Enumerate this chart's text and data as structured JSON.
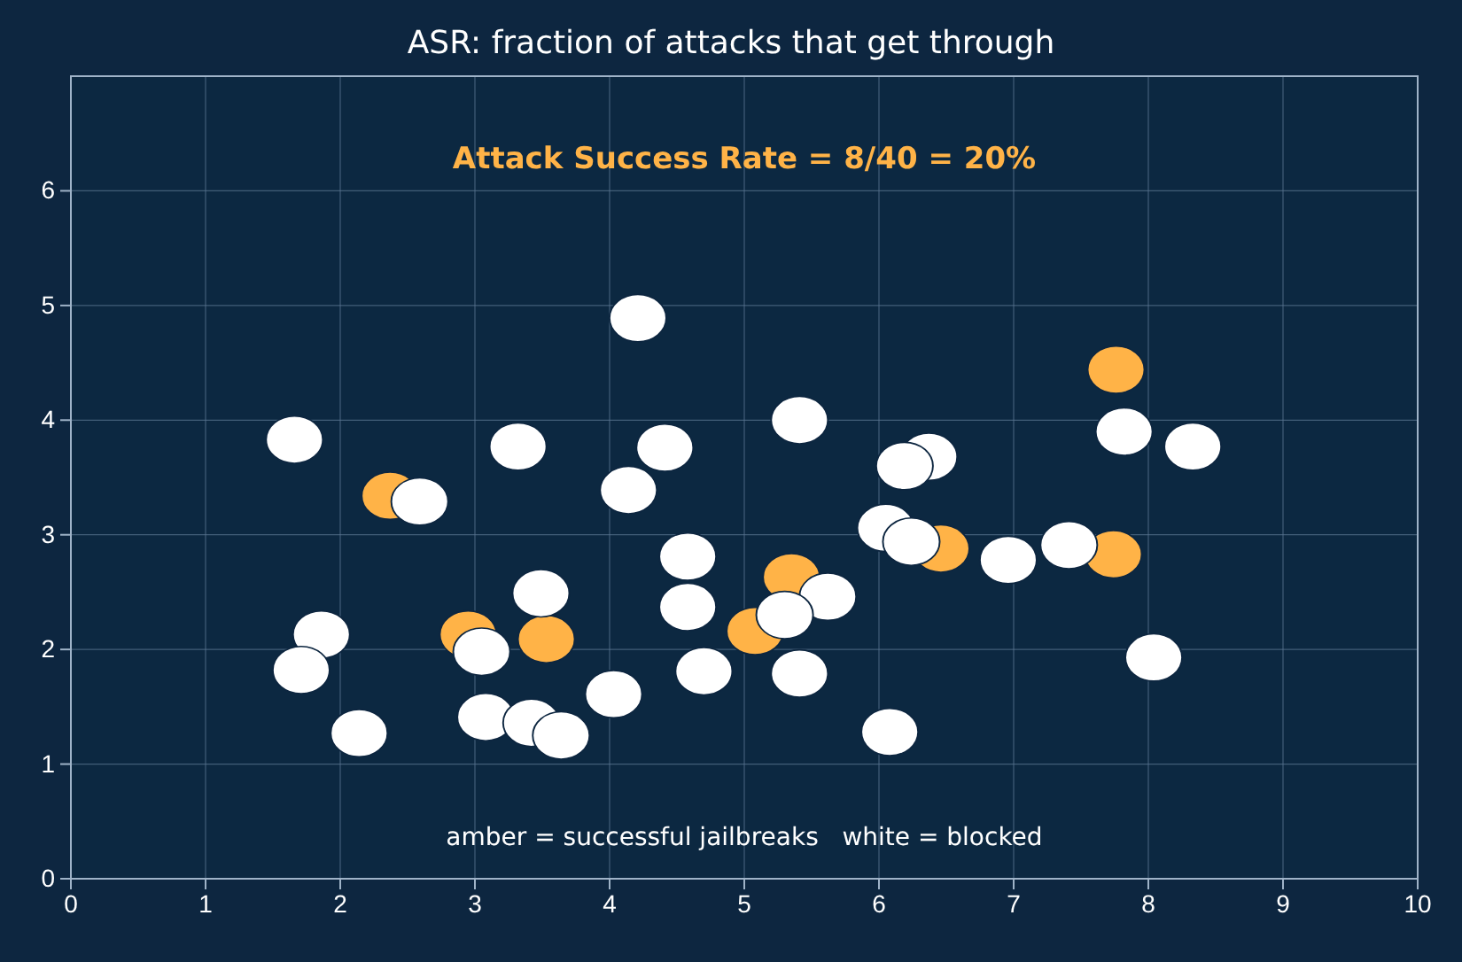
{
  "chart_data": {
    "type": "scatter",
    "title": "ASR: fraction of attacks that get through",
    "annotations": [
      "Attack Success Rate = 8/40 = 20%",
      "amber = successful jailbreaks   white = blocked"
    ],
    "xlim": [
      0,
      10
    ],
    "ylim": [
      0,
      7
    ],
    "xticks": [
      0,
      1,
      2,
      3,
      4,
      5,
      6,
      7,
      8,
      9,
      10
    ],
    "yticks": [
      0,
      1,
      2,
      3,
      4,
      5,
      6
    ],
    "grid": true,
    "marker": "circle",
    "series": [
      {
        "color": "#ffb347",
        "x": [
          2.37,
          2.95,
          3.53,
          5.08,
          5.35,
          6.46,
          7.76,
          7.74
        ],
        "values": [
          3.34,
          2.13,
          2.09,
          2.16,
          2.63,
          2.88,
          4.44,
          2.83
        ]
      },
      {
        "color": "#ffffff",
        "x": [
          1.66,
          2.59,
          1.86,
          1.71,
          2.14,
          3.32,
          3.49,
          3.05,
          3.08,
          3.42,
          3.64,
          4.03,
          4.21,
          4.41,
          4.14,
          4.58,
          4.58,
          4.7,
          5.41,
          5.41,
          5.62,
          5.3,
          6.08,
          6.05,
          6.37,
          6.19,
          6.24,
          6.96,
          7.41,
          7.82,
          8.33,
          8.04
        ],
        "values": [
          3.83,
          3.29,
          2.13,
          1.82,
          1.27,
          3.77,
          2.49,
          1.98,
          1.41,
          1.36,
          1.25,
          1.61,
          4.89,
          3.76,
          3.39,
          2.81,
          2.37,
          1.81,
          4.0,
          1.79,
          2.46,
          2.3,
          1.28,
          3.06,
          3.68,
          3.6,
          2.94,
          2.78,
          2.91,
          3.9,
          3.77,
          1.93
        ]
      }
    ]
  }
}
